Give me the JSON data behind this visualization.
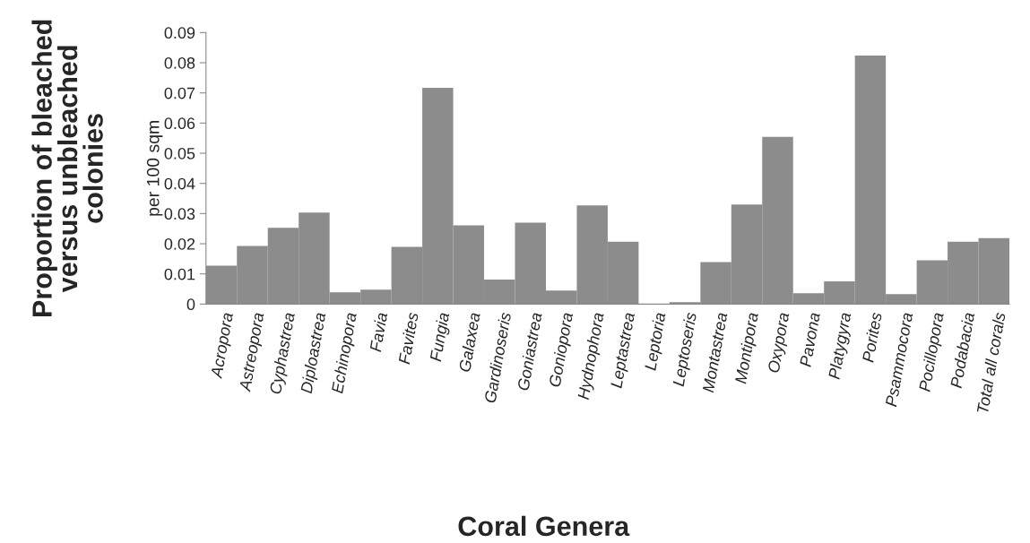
{
  "chart_data": {
    "type": "bar",
    "xlabel": "Coral Genera",
    "ylabel": "Proportion of bleached versus unbleached colonies",
    "annotations": [
      "per 100 sqm"
    ],
    "categories": [
      "Acropora",
      "Astreopora",
      "Cyphastrea",
      "Diploastrea",
      "Echinopora",
      "Favia",
      "Favites",
      "Fungia",
      "Galaxea",
      "Gardinoseris",
      "Goniastrea",
      "Goniopora",
      "Hydnophora",
      "Leptastrea",
      "Leptoria",
      "Leptoseris",
      "Montastrea",
      "Montipora",
      "Oxypora",
      "Pavona",
      "Platygyra",
      "Porites",
      "Psammocora",
      "Pocillopora",
      "Podabacia",
      "Total all corals"
    ],
    "values": [
      0.0127,
      0.0193,
      0.0253,
      0.0303,
      0.0039,
      0.0048,
      0.019,
      0.0717,
      0.0261,
      0.0081,
      0.027,
      0.0045,
      0.0327,
      0.0207,
      0.0001,
      0.0006,
      0.0139,
      0.033,
      0.0554,
      0.0036,
      0.0075,
      0.0824,
      0.0033,
      0.0145,
      0.0207,
      0.0219
    ],
    "color": "#8c8c8c",
    "ylim": [
      0,
      0.09
    ],
    "yticks": [
      0,
      0.01,
      0.02,
      0.03,
      0.04,
      0.05,
      0.06,
      0.07,
      0.08,
      0.09
    ],
    "grid": false
  }
}
